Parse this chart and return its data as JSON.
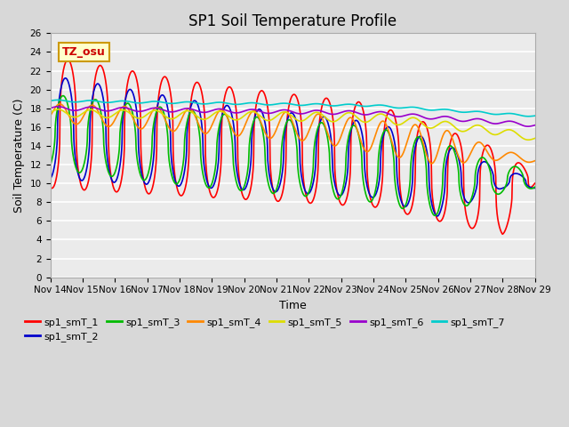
{
  "title": "SP1 Soil Temperature Profile",
  "xlabel": "Time",
  "ylabel": "Soil Temperature (C)",
  "ylim": [
    0,
    26
  ],
  "yticks": [
    0,
    2,
    4,
    6,
    8,
    10,
    12,
    14,
    16,
    18,
    20,
    22,
    24,
    26
  ],
  "xtick_labels": [
    "Nov 14",
    "Nov 15",
    "Nov 16",
    "Nov 17",
    "Nov 18",
    "Nov 19",
    "Nov 20",
    "Nov 21",
    "Nov 22",
    "Nov 23",
    "Nov 24",
    "Nov 25",
    "Nov 26",
    "Nov 27",
    "Nov 28",
    "Nov 29"
  ],
  "annotation_text": "TZ_osu",
  "annotation_color": "#cc0000",
  "annotation_bg": "#ffffcc",
  "annotation_border": "#cc9900",
  "series_colors": [
    "#ff0000",
    "#0000cc",
    "#00bb00",
    "#ff8800",
    "#dddd00",
    "#9900cc",
    "#00cccc"
  ],
  "series_labels": [
    "sp1_smT_1",
    "sp1_smT_2",
    "sp1_smT_3",
    "sp1_smT_4",
    "sp1_smT_5",
    "sp1_smT_6",
    "sp1_smT_7"
  ],
  "bg_color": "#d8d8d8",
  "plot_bg_color": "#ebebeb",
  "n_days": 15
}
